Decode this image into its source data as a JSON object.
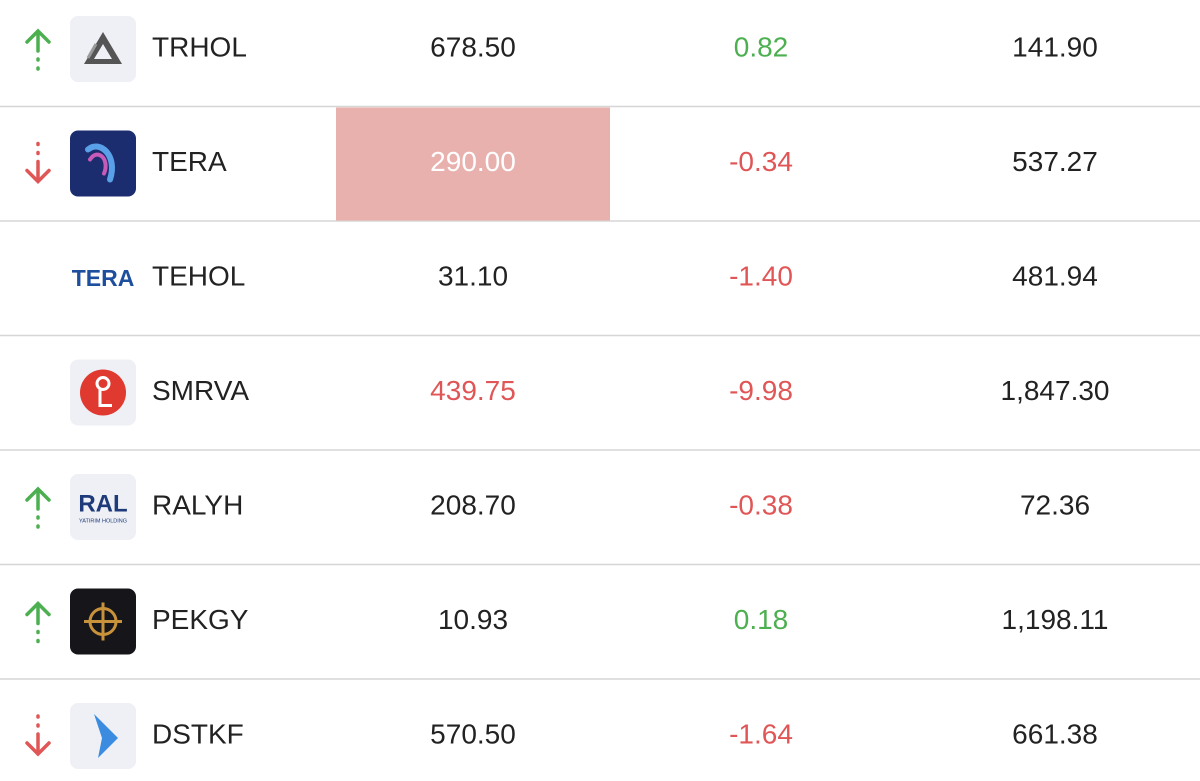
{
  "rows": [
    {
      "ticker": "TRHOL",
      "price": "678.50",
      "change": "0.82",
      "value": "141.90",
      "trend": "up",
      "logo": "triangle"
    },
    {
      "ticker": "TERA",
      "price": "290.00",
      "change": "-0.34",
      "value": "537.27",
      "trend": "down",
      "logo": "swirl",
      "highlight": true
    },
    {
      "ticker": "TEHOL",
      "price": "31.10",
      "change": "-1.40",
      "value": "481.94",
      "logo": "wordmark",
      "logo_text": "TERA"
    },
    {
      "ticker": "SMRVA",
      "price": "439.75",
      "change": "-9.98",
      "value": "1,847.30",
      "logo": "circle",
      "price_tone": "down"
    },
    {
      "ticker": "RALYH",
      "price": "208.70",
      "change": "-0.38",
      "value": "72.36",
      "trend": "up",
      "logo": "ral",
      "logo_text": "RAL",
      "logo_subtext": "YATIRIM HOLDING"
    },
    {
      "ticker": "PEKGY",
      "price": "10.93",
      "change": "0.18",
      "value": "1,198.11",
      "trend": "up",
      "logo": "gold"
    },
    {
      "ticker": "DSTKF",
      "price": "570.50",
      "change": "-1.64",
      "value": "661.38",
      "trend": "down",
      "logo": "chevron"
    }
  ]
}
